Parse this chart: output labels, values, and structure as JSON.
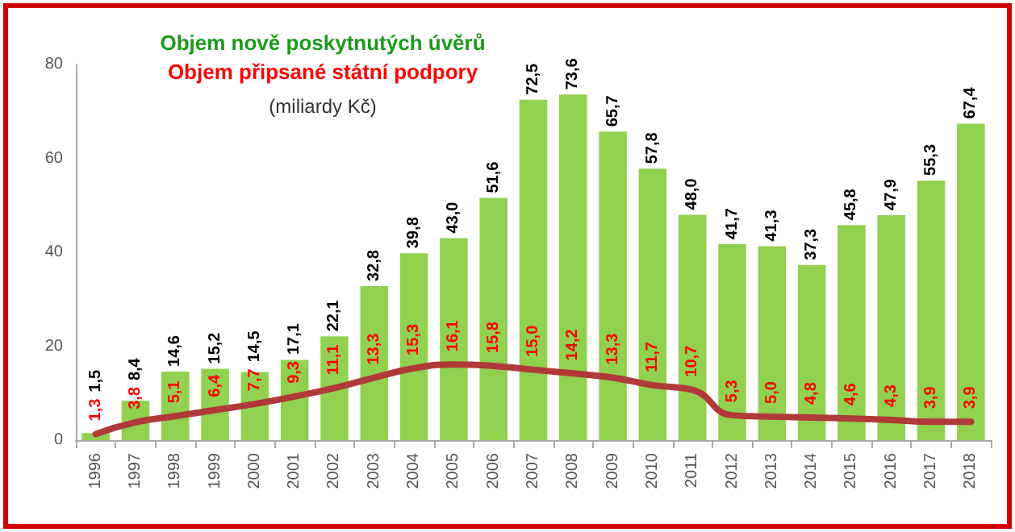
{
  "chart_data": {
    "type": "bar",
    "title": "Objem nově poskytnutých úvěrů",
    "subtitle": "Objem připsané státní podpory",
    "annotations": [
      "(miliardy Kč)"
    ],
    "categories": [
      "1996",
      "1997",
      "1998",
      "1999",
      "2000",
      "2001",
      "2002",
      "2003",
      "2004",
      "2005",
      "2006",
      "2007",
      "2008",
      "2009",
      "2010",
      "2011",
      "2012",
      "2013",
      "2014",
      "2015",
      "2016",
      "2017",
      "2018"
    ],
    "series": [
      {
        "color": "#92d050",
        "values": [
          1.5,
          8.4,
          14.6,
          15.2,
          14.5,
          17.1,
          22.1,
          32.8,
          39.8,
          43.0,
          51.6,
          72.5,
          73.6,
          65.7,
          57.8,
          48.0,
          41.7,
          41.3,
          37.3,
          45.8,
          47.9,
          55.3,
          67.4
        ],
        "value_labels": [
          "1,5",
          "8,4",
          "14,6",
          "15,2",
          "14,5",
          "17,1",
          "22,1",
          "32,8",
          "39,8",
          "43,0",
          "51,6",
          "72,5",
          "73,6",
          "65,7",
          "57,8",
          "48,0",
          "41,7",
          "41,3",
          "37,3",
          "45,8",
          "47,9",
          "55,3",
          "67,4"
        ]
      },
      {
        "type": "line",
        "color": "#b03a3a",
        "values": [
          1.3,
          3.8,
          5.1,
          6.4,
          7.7,
          9.3,
          11.1,
          13.3,
          15.3,
          16.1,
          15.8,
          15.0,
          14.2,
          13.3,
          11.7,
          10.7,
          5.3,
          5.0,
          4.8,
          4.6,
          4.3,
          3.9,
          3.9
        ],
        "value_labels": [
          "1,3",
          "3,8",
          "5,1",
          "6,4",
          "7,7",
          "9,3",
          "11,1",
          "13,3",
          "15,3",
          "16,1",
          "15,8",
          "15,0",
          "14,2",
          "13,3",
          "11,7",
          "10,7",
          "5,3",
          "5,0",
          "4,8",
          "4,6",
          "4,3",
          "3,9",
          "3,9"
        ]
      }
    ],
    "ylim": [
      0,
      80
    ],
    "yticks": [
      0,
      20,
      40,
      60,
      80
    ],
    "grid": false,
    "marker": "none",
    "line_style": "solid"
  }
}
